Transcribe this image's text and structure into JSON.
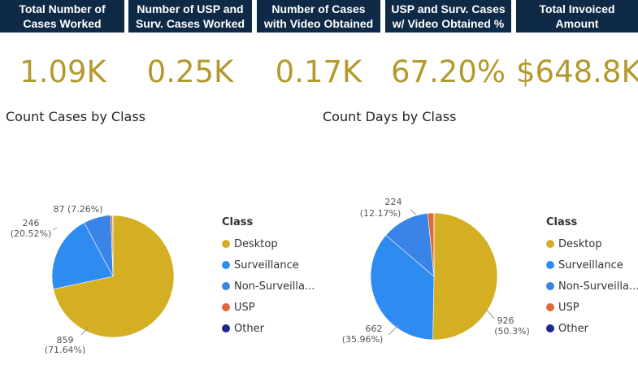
{
  "kpis": [
    {
      "title": "Total Number of Cases Worked",
      "value": "1.09K"
    },
    {
      "title": "Number of USP and Surv. Cases Worked",
      "value": "0.25K"
    },
    {
      "title": "Number of Cases with Video Obtained",
      "value": "0.17K"
    },
    {
      "title": "USP and Surv. Cases w/ Video Obtained %",
      "value": "67.20%"
    },
    {
      "title": "Total Invoiced Amount",
      "value": "$648.8K"
    }
  ],
  "colors": {
    "header_bg": "#0f2a47",
    "kpi_value": "#b39a2e",
    "Desktop": "#d4af23",
    "Surveillance": "#2e8cf0",
    "Non-Surveillance": "#3a84e8",
    "USP": "#e0673a",
    "Other": "#1b2a8c"
  },
  "chart_data": [
    {
      "type": "pie",
      "title": "Count Cases by Class",
      "legend_title": "Class",
      "legend_placement": "right",
      "categories": [
        "Desktop",
        "Surveillance",
        "Non-Surveilla...",
        "USP",
        "Other"
      ],
      "slices": [
        {
          "name": "Desktop",
          "value": 859,
          "label_value": "859",
          "label_pct": "(71.64%)"
        },
        {
          "name": "Surveillance",
          "value": 246,
          "label_value": "246",
          "label_pct": "(20.52%)"
        },
        {
          "name": "Non-Surveilla...",
          "value": 87,
          "label_value": "87 (7.26%)",
          "label_pct": ""
        },
        {
          "name": "USP",
          "value": 6,
          "label_value": "",
          "label_pct": ""
        },
        {
          "name": "Other",
          "value": 1,
          "label_value": "",
          "label_pct": ""
        }
      ]
    },
    {
      "type": "pie",
      "title": "Count Days by Class",
      "legend_title": "Class",
      "legend_placement": "right",
      "categories": [
        "Desktop",
        "Surveillance",
        "Non-Surveilla...",
        "USP",
        "Other"
      ],
      "slices": [
        {
          "name": "Desktop",
          "value": 926,
          "label_value": "926",
          "label_pct": "(50.3%)"
        },
        {
          "name": "Surveillance",
          "value": 662,
          "label_value": "662",
          "label_pct": "(35.96%)"
        },
        {
          "name": "Non-Surveilla...",
          "value": 224,
          "label_value": "224",
          "label_pct": "(12.17%)"
        },
        {
          "name": "USP",
          "value": 28,
          "label_value": "",
          "label_pct": ""
        },
        {
          "name": "Other",
          "value": 1,
          "label_value": "",
          "label_pct": ""
        }
      ]
    }
  ],
  "legend_labels": [
    "Desktop",
    "Surveillance",
    "Non-Surveilla...",
    "USP",
    "Other"
  ]
}
